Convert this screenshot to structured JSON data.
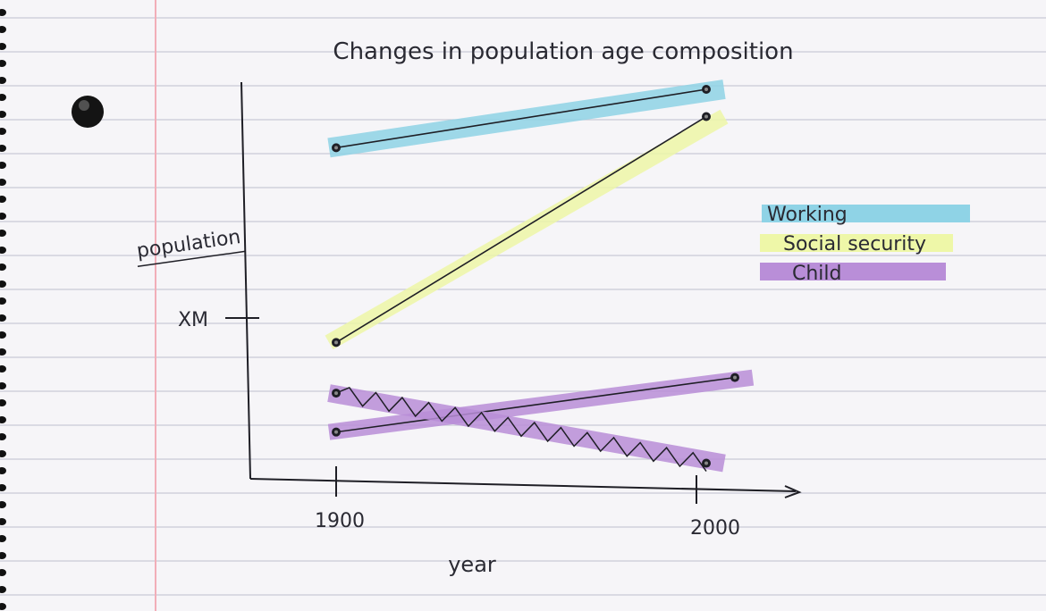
{
  "chart_data": {
    "type": "line",
    "title": "Changes in population age composition",
    "xlabel": "year",
    "ylabel": "population",
    "x": [
      1900,
      2000
    ],
    "x_ticks": [
      "1900",
      "2000"
    ],
    "y_tick_label": "XM",
    "series": [
      {
        "name": "Working",
        "values": [
          0.85,
          1.0
        ]
      },
      {
        "name": "Social security",
        "values": [
          0.35,
          0.93
        ]
      },
      {
        "name": "Child (rising)",
        "values": [
          0.12,
          0.26
        ]
      },
      {
        "name": "Child (falling)",
        "values": [
          0.22,
          0.04
        ]
      }
    ],
    "legend": {
      "placement": "right",
      "entries": [
        {
          "label": "Working",
          "color": "#8fd3e6"
        },
        {
          "label": "Social security",
          "color": "#eef7a8"
        },
        {
          "label": "Child",
          "color": "#b98ed8"
        }
      ]
    },
    "grid": false
  },
  "colors": {
    "paper": "#f6f5f8",
    "rule": "#c9cbd6",
    "margin": "#f2aeb8",
    "ink": "#1f1f26",
    "working": "#8fd3e6",
    "social": "#eef7a8",
    "child": "#b98ed8"
  },
  "paper": {
    "hole_icon": "binder-hole-icon",
    "spiral_icon": "spiral-binding-icon"
  }
}
